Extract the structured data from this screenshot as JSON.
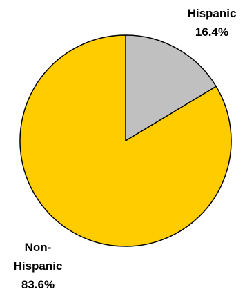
{
  "chart_data": {
    "type": "pie",
    "title": "",
    "slices": [
      {
        "label_lines": [
          "Hispanic"
        ],
        "value_label": "16.4%",
        "value": 16.4,
        "color": "#C0C0C0"
      },
      {
        "label_lines": [
          "Non-",
          "Hispanic"
        ],
        "value_label": "83.6%",
        "value": 83.6,
        "color": "#FFCC00"
      }
    ],
    "start": "12 o'clock",
    "direction": "clockwise",
    "outline_color": "#000000",
    "legend": "none"
  }
}
